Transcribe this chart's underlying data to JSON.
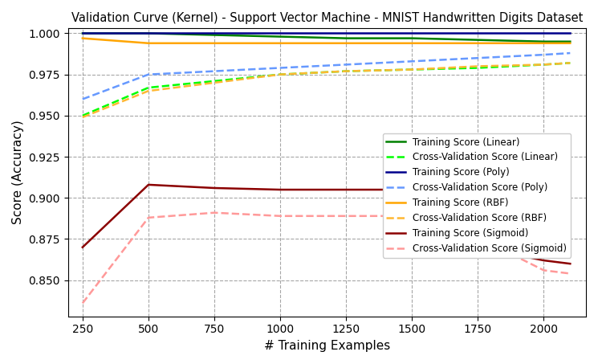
{
  "title": "Validation Curve (Kernel) - Support Vector Machine - MNIST Handwritten Digits Dataset",
  "xlabel": "# Training Examples",
  "ylabel": "Score (Accuracy)",
  "xlim": [
    195,
    2160
  ],
  "ylim": [
    0.828,
    1.003
  ],
  "x": [
    250,
    500,
    750,
    1000,
    1250,
    1500,
    1750,
    2000,
    2100
  ],
  "train_linear": [
    1.0,
    1.0,
    0.999,
    0.998,
    0.997,
    0.997,
    0.996,
    0.995,
    0.995
  ],
  "cv_linear": [
    0.95,
    0.967,
    0.971,
    0.975,
    0.977,
    0.978,
    0.979,
    0.981,
    0.982
  ],
  "train_poly": [
    1.0,
    1.0,
    1.0,
    1.0,
    1.0,
    1.0,
    1.0,
    1.0,
    1.0
  ],
  "cv_poly": [
    0.96,
    0.975,
    0.977,
    0.979,
    0.981,
    0.983,
    0.985,
    0.987,
    0.988
  ],
  "train_rbf": [
    0.997,
    0.994,
    0.994,
    0.994,
    0.994,
    0.994,
    0.994,
    0.994,
    0.994
  ],
  "cv_rbf": [
    0.949,
    0.965,
    0.97,
    0.975,
    0.977,
    0.978,
    0.98,
    0.981,
    0.982
  ],
  "train_sigmoid": [
    0.87,
    0.908,
    0.906,
    0.905,
    0.905,
    0.905,
    0.87,
    0.862,
    0.86
  ],
  "cv_sigmoid": [
    0.836,
    0.888,
    0.891,
    0.889,
    0.889,
    0.889,
    0.876,
    0.856,
    0.854
  ],
  "color_linear": "#008000",
  "color_cv_linear": "#00FF00",
  "color_poly": "#00008B",
  "color_cv_poly": "#6699FF",
  "color_rbf": "#FFA500",
  "color_cv_rbf": "#FFB833",
  "color_sigmoid": "#8B0000",
  "color_cv_sigmoid": "#FF9999",
  "legend_loc": "center right",
  "grid": true,
  "xticks": [
    250,
    500,
    750,
    1000,
    1250,
    1500,
    1750,
    2000
  ],
  "yticks": [
    0.85,
    0.875,
    0.9,
    0.925,
    0.95,
    0.975,
    1.0
  ]
}
